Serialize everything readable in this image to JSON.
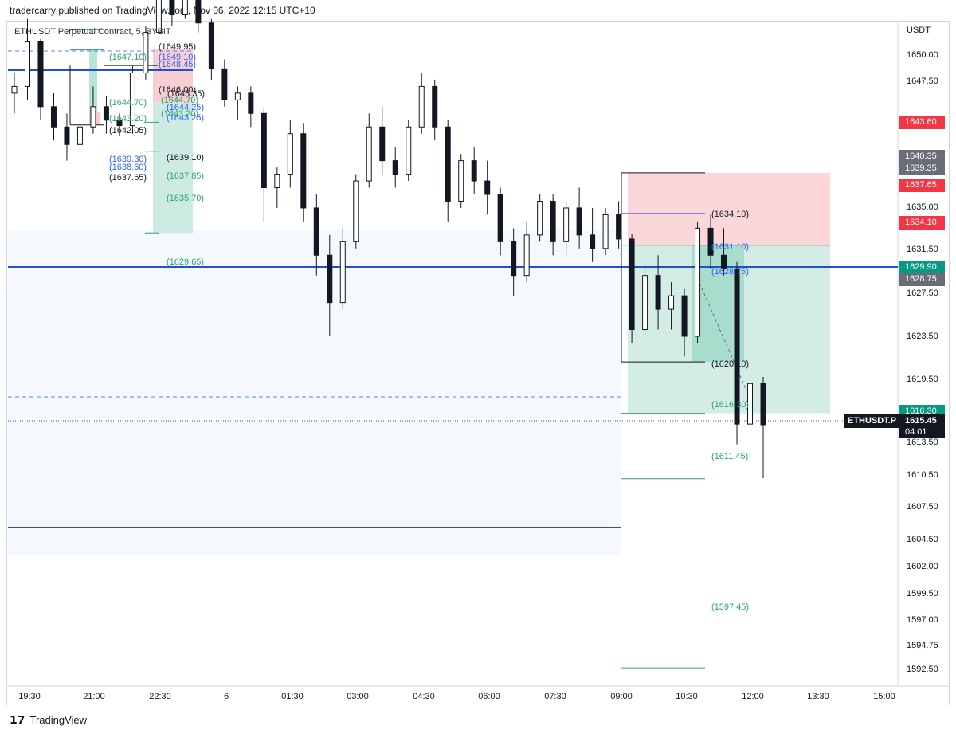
{
  "header": {
    "publisher": "tradercarry published on TradingView.com, Nov 06, 2022 12:15 UTC+10"
  },
  "symbol": {
    "title": "ETHUSDT Perpetual Contract, 5, BYBIT"
  },
  "axis": {
    "currency": "USDT",
    "ticks": [
      "1650.00",
      "1647.50",
      "1643.60",
      "1640.35",
      "1639.35",
      "1637.65",
      "1635.00",
      "1634.10",
      "1631.50",
      "1629.90",
      "1628.75",
      "1627.50",
      "1623.50",
      "1619.50",
      "1616.30",
      "1615.45",
      "04:01",
      "1613.50",
      "1610.50",
      "1607.50",
      "1604.50",
      "1602.00",
      "1599.50",
      "1597.00",
      "1594.75",
      "1592.50"
    ]
  },
  "price_tags": [
    {
      "value": "1643.60",
      "color": "#f23645"
    },
    {
      "value": "1640.35",
      "color": "#6a6d78"
    },
    {
      "value": "1639.35",
      "color": "#6a6d78"
    },
    {
      "value": "1637.65",
      "color": "#f23645"
    },
    {
      "value": "1634.10",
      "color": "#f23645"
    },
    {
      "value": "1629.90",
      "color": "#089981"
    },
    {
      "value": "1628.75",
      "color": "#6a6d78"
    },
    {
      "value": "1616.30",
      "color": "#089981"
    },
    {
      "value": "1615.45",
      "color": "#131722"
    },
    {
      "value": "04:01",
      "color": "#131722"
    }
  ],
  "symbol_tag": "ETHUSDT.P",
  "time_labels": [
    "19:30",
    "21:00",
    "22:30",
    "6",
    "01:30",
    "03:00",
    "04:30",
    "06:00",
    "07:30",
    "09:00",
    "10:30",
    "12:00",
    "13:30",
    "15:00"
  ],
  "annotations_left": {
    "black": [
      "(1649.95)",
      "(1646.00)",
      "(1645.35)",
      "(1642.05)",
      "(1639.10)",
      "(1637.65)"
    ],
    "blue": [
      "(1649.10)",
      "(1648.45)",
      "(1644.25)",
      "(1643.25)",
      "(1639.30)",
      "(1638.60)"
    ],
    "green": [
      "(1647.10)",
      "(1644.70)",
      "(1644.70)",
      "(1643.20)",
      "(1643.20)",
      "(1637.85)",
      "(1635.70)",
      "(1629.65)"
    ]
  },
  "annotations_right": {
    "black": [
      "(1634.10)",
      "(1620.10)"
    ],
    "blue": [
      "(1631.10)",
      "(1628.75)"
    ],
    "green": [
      "(1616.30)",
      "(1611.45)",
      "(1597.45)"
    ]
  },
  "footer": {
    "brand": "TradingView"
  },
  "chart_data": {
    "type": "candlestick",
    "title": "ETHUSDT Perpetual Contract, 5, BYBIT",
    "ylim": [
      1591,
      1652
    ],
    "y_unit": "USDT",
    "candles": [
      {
        "t": 1,
        "o": 1640.0,
        "h": 1641.5,
        "l": 1638.5,
        "c": 1640.5
      },
      {
        "t": 2,
        "o": 1640.5,
        "h": 1645.5,
        "l": 1639.5,
        "c": 1643.8
      },
      {
        "t": 3,
        "o": 1643.8,
        "h": 1644.0,
        "l": 1638.0,
        "c": 1639.0
      },
      {
        "t": 4,
        "o": 1639.0,
        "h": 1640.0,
        "l": 1636.5,
        "c": 1637.5
      },
      {
        "t": 5,
        "o": 1637.5,
        "h": 1638.5,
        "l": 1635.0,
        "c": 1636.2
      },
      {
        "t": 6,
        "o": 1636.2,
        "h": 1638.0,
        "l": 1636.0,
        "c": 1637.5
      },
      {
        "t": 7,
        "o": 1637.5,
        "h": 1640.5,
        "l": 1637.0,
        "c": 1639.0
      },
      {
        "t": 8,
        "o": 1639.0,
        "h": 1639.8,
        "l": 1637.0,
        "c": 1638.0
      },
      {
        "t": 9,
        "o": 1638.0,
        "h": 1638.5,
        "l": 1636.8,
        "c": 1637.6
      },
      {
        "t": 10,
        "o": 1637.6,
        "h": 1642.0,
        "l": 1637.0,
        "c": 1641.5
      },
      {
        "t": 11,
        "o": 1641.5,
        "h": 1645.0,
        "l": 1641.0,
        "c": 1644.5
      },
      {
        "t": 12,
        "o": 1644.5,
        "h": 1648.0,
        "l": 1644.0,
        "c": 1647.5
      },
      {
        "t": 13,
        "o": 1647.5,
        "h": 1648.5,
        "l": 1645.0,
        "c": 1645.8
      },
      {
        "t": 14,
        "o": 1645.8,
        "h": 1649.9,
        "l": 1645.5,
        "c": 1648.8
      },
      {
        "t": 15,
        "o": 1648.8,
        "h": 1649.0,
        "l": 1644.5,
        "c": 1645.2
      },
      {
        "t": 16,
        "o": 1645.2,
        "h": 1645.5,
        "l": 1641.0,
        "c": 1641.8
      },
      {
        "t": 17,
        "o": 1641.8,
        "h": 1642.5,
        "l": 1639.0,
        "c": 1639.5
      },
      {
        "t": 18,
        "o": 1639.5,
        "h": 1640.5,
        "l": 1638.0,
        "c": 1640.0
      },
      {
        "t": 19,
        "o": 1640.0,
        "h": 1640.5,
        "l": 1637.5,
        "c": 1638.5
      },
      {
        "t": 20,
        "o": 1638.5,
        "h": 1638.9,
        "l": 1630.5,
        "c": 1633.0
      },
      {
        "t": 21,
        "o": 1633.0,
        "h": 1634.5,
        "l": 1631.5,
        "c": 1634.0
      },
      {
        "t": 22,
        "o": 1634.0,
        "h": 1638.0,
        "l": 1633.0,
        "c": 1637.0
      },
      {
        "t": 23,
        "o": 1637.0,
        "h": 1637.8,
        "l": 1630.5,
        "c": 1631.5
      },
      {
        "t": 24,
        "o": 1631.5,
        "h": 1632.5,
        "l": 1626.5,
        "c": 1628.0
      },
      {
        "t": 25,
        "o": 1628.0,
        "h": 1629.5,
        "l": 1622.0,
        "c": 1624.5
      },
      {
        "t": 26,
        "o": 1624.5,
        "h": 1630.0,
        "l": 1624.0,
        "c": 1629.0
      },
      {
        "t": 27,
        "o": 1629.0,
        "h": 1634.0,
        "l": 1628.5,
        "c": 1633.5
      },
      {
        "t": 28,
        "o": 1633.5,
        "h": 1638.5,
        "l": 1633.0,
        "c": 1637.5
      },
      {
        "t": 29,
        "o": 1637.5,
        "h": 1639.0,
        "l": 1634.0,
        "c": 1635.0
      },
      {
        "t": 30,
        "o": 1635.0,
        "h": 1636.0,
        "l": 1633.0,
        "c": 1634.0
      },
      {
        "t": 31,
        "o": 1634.0,
        "h": 1638.0,
        "l": 1633.5,
        "c": 1637.5
      },
      {
        "t": 32,
        "o": 1637.5,
        "h": 1641.5,
        "l": 1637.0,
        "c": 1640.5
      },
      {
        "t": 33,
        "o": 1640.5,
        "h": 1641.0,
        "l": 1636.5,
        "c": 1637.5
      },
      {
        "t": 34,
        "o": 1637.5,
        "h": 1638.0,
        "l": 1630.5,
        "c": 1632.0
      },
      {
        "t": 35,
        "o": 1632.0,
        "h": 1635.5,
        "l": 1631.5,
        "c": 1635.0
      },
      {
        "t": 36,
        "o": 1635.0,
        "h": 1636.0,
        "l": 1632.5,
        "c": 1633.5
      },
      {
        "t": 37,
        "o": 1633.5,
        "h": 1635.0,
        "l": 1631.0,
        "c": 1632.5
      },
      {
        "t": 38,
        "o": 1632.5,
        "h": 1633.0,
        "l": 1628.0,
        "c": 1629.0
      },
      {
        "t": 39,
        "o": 1629.0,
        "h": 1630.0,
        "l": 1625.0,
        "c": 1626.5
      },
      {
        "t": 40,
        "o": 1626.5,
        "h": 1630.5,
        "l": 1626.0,
        "c": 1629.5
      },
      {
        "t": 41,
        "o": 1629.5,
        "h": 1632.5,
        "l": 1629.0,
        "c": 1632.0
      },
      {
        "t": 42,
        "o": 1632.0,
        "h": 1632.5,
        "l": 1628.0,
        "c": 1629.0
      },
      {
        "t": 43,
        "o": 1629.0,
        "h": 1632.0,
        "l": 1628.0,
        "c": 1631.5
      },
      {
        "t": 44,
        "o": 1631.5,
        "h": 1633.0,
        "l": 1628.5,
        "c": 1629.5
      },
      {
        "t": 45,
        "o": 1629.5,
        "h": 1631.5,
        "l": 1627.5,
        "c": 1628.5
      },
      {
        "t": 46,
        "o": 1628.5,
        "h": 1631.5,
        "l": 1628.0,
        "c": 1631.0
      },
      {
        "t": 47,
        "o": 1631.0,
        "h": 1632.0,
        "l": 1628.5,
        "c": 1629.2
      },
      {
        "t": 48,
        "o": 1629.2,
        "h": 1629.6,
        "l": 1621.5,
        "c": 1622.5
      },
      {
        "t": 49,
        "o": 1622.5,
        "h": 1627.5,
        "l": 1622.0,
        "c": 1626.5
      },
      {
        "t": 50,
        "o": 1626.5,
        "h": 1628.0,
        "l": 1622.5,
        "c": 1624.0
      },
      {
        "t": 51,
        "o": 1624.0,
        "h": 1626.0,
        "l": 1622.5,
        "c": 1625.0
      },
      {
        "t": 52,
        "o": 1625.0,
        "h": 1625.5,
        "l": 1620.5,
        "c": 1622.0
      },
      {
        "t": 53,
        "o": 1622.0,
        "h": 1630.5,
        "l": 1621.5,
        "c": 1630.0
      },
      {
        "t": 54,
        "o": 1630.0,
        "h": 1631.0,
        "l": 1627.0,
        "c": 1628.0
      },
      {
        "t": 55,
        "o": 1628.0,
        "h": 1630.0,
        "l": 1626.5,
        "c": 1627.0
      },
      {
        "t": 56,
        "o": 1627.0,
        "h": 1627.5,
        "l": 1614.0,
        "c": 1615.5
      },
      {
        "t": 57,
        "o": 1615.5,
        "h": 1619.0,
        "l": 1612.5,
        "c": 1618.5
      },
      {
        "t": 58,
        "o": 1618.5,
        "h": 1619.0,
        "l": 1611.5,
        "c": 1615.45
      }
    ],
    "levels": [
      1649.1,
      1648.45,
      1629.9,
      1618.2,
      1605.8
    ],
    "position_long": {
      "entry": 1628.75,
      "stop": 1634.1,
      "target": 1616.3
    },
    "position_short_left": {
      "entry": 1638.6,
      "stop": 1643.25,
      "target": 1629.65
    }
  }
}
